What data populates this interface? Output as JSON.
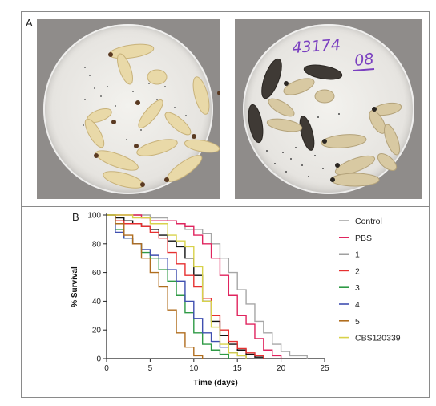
{
  "figure": {
    "panel_a_label": "A",
    "panel_b_label": "B",
    "photo_right_annotation": {
      "number": "43174",
      "suffix": "08"
    }
  },
  "chart_data": {
    "type": "line",
    "title": "",
    "xlabel": "Time (days)",
    "ylabel": "% Survival",
    "xlim": [
      0,
      25
    ],
    "ylim": [
      0,
      100
    ],
    "xticks": [
      0,
      5,
      10,
      15,
      20,
      25
    ],
    "yticks": [
      0,
      20,
      40,
      60,
      80,
      100
    ],
    "grid": false,
    "legend_position": "right",
    "series": [
      {
        "name": "Control",
        "color": "#a6a6a6",
        "x": [
          0,
          3,
          5,
          7,
          8,
          9,
          11,
          12,
          13,
          14,
          15,
          16,
          17,
          18,
          19,
          20,
          21,
          23
        ],
        "y": [
          100,
          100,
          98,
          96,
          94,
          90,
          87,
          80,
          70,
          60,
          48,
          38,
          26,
          18,
          10,
          5,
          2,
          0
        ]
      },
      {
        "name": "PBS",
        "color": "#e0245e",
        "x": [
          0,
          4,
          5,
          7,
          8,
          9,
          10,
          11,
          12,
          13,
          14,
          15,
          16,
          17,
          18,
          19,
          20
        ],
        "y": [
          100,
          98,
          96,
          96,
          94,
          92,
          86,
          80,
          70,
          58,
          44,
          30,
          24,
          14,
          6,
          2,
          0
        ]
      },
      {
        "name": "1",
        "color": "#111111",
        "x": [
          0,
          1,
          2,
          3,
          4,
          5,
          6,
          7,
          8,
          9,
          10,
          11,
          12,
          13,
          14,
          15,
          16,
          17,
          18
        ],
        "y": [
          100,
          98,
          96,
          94,
          92,
          90,
          86,
          82,
          78,
          70,
          58,
          40,
          26,
          16,
          10,
          6,
          3,
          1,
          0
        ]
      },
      {
        "name": "2",
        "color": "#e63030",
        "x": [
          0,
          1,
          2,
          4,
          5,
          6,
          7,
          8,
          9,
          10,
          11,
          12,
          13,
          14,
          15,
          16,
          17,
          18
        ],
        "y": [
          100,
          96,
          94,
          92,
          88,
          84,
          74,
          66,
          58,
          50,
          42,
          30,
          20,
          12,
          7,
          4,
          2,
          0
        ]
      },
      {
        "name": "3",
        "color": "#2e9a45",
        "x": [
          0,
          1,
          2,
          3,
          4,
          5,
          6,
          7,
          8,
          9,
          10,
          11,
          12,
          13,
          14
        ],
        "y": [
          100,
          90,
          84,
          80,
          74,
          70,
          62,
          54,
          44,
          32,
          18,
          10,
          6,
          3,
          0
        ]
      },
      {
        "name": "4",
        "color": "#3f4fb0",
        "x": [
          0,
          1,
          2,
          3,
          4,
          5,
          6,
          7,
          8,
          9,
          10,
          11,
          12,
          13,
          14,
          15,
          16
        ],
        "y": [
          100,
          88,
          84,
          80,
          76,
          72,
          70,
          62,
          54,
          40,
          28,
          18,
          12,
          8,
          4,
          2,
          0
        ]
      },
      {
        "name": "5",
        "color": "#b06d1e",
        "x": [
          0,
          1,
          2,
          3,
          4,
          5,
          6,
          7,
          8,
          9,
          10,
          11
        ],
        "y": [
          100,
          94,
          86,
          80,
          70,
          60,
          50,
          34,
          18,
          8,
          2,
          0
        ]
      },
      {
        "name": "CBS120339",
        "color": "#d8d24a",
        "x": [
          0,
          1,
          3,
          5,
          7,
          8,
          9,
          10,
          11,
          12,
          13,
          14,
          15,
          16
        ],
        "y": [
          100,
          100,
          98,
          94,
          86,
          82,
          78,
          64,
          40,
          22,
          10,
          4,
          2,
          0
        ]
      }
    ]
  }
}
